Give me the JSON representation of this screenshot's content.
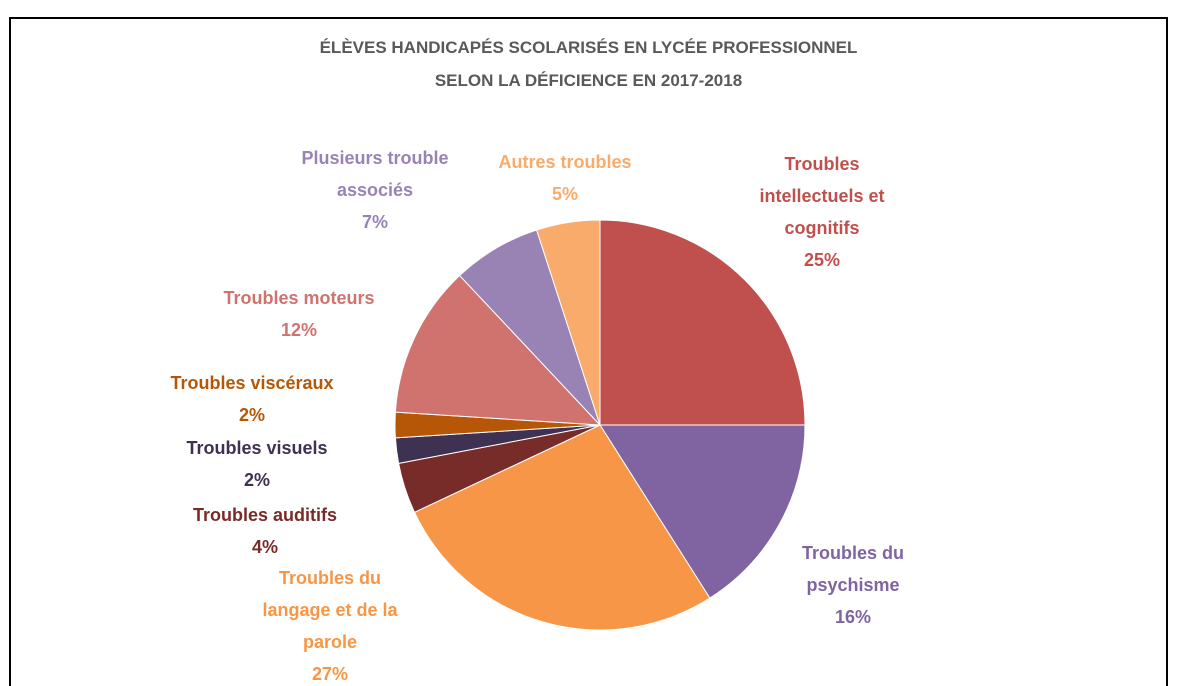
{
  "chart_data": {
    "type": "pie",
    "title": [
      "ÉLÈVES HANDICAPÉS SCOLARISÉS EN LYCÉE PROFESSIONNEL",
      "SELON LA DÉFICIENCE EN 2017-2018"
    ],
    "categories": [
      "Troubles intellectuels et cognitifs",
      "Troubles du psychisme",
      "Troubles du langage et de la parole",
      "Troubles auditifs",
      "Troubles visuels",
      "Troubles viscéraux",
      "Troubles moteurs",
      "Plusieurs trouble associés",
      "Autres troubles"
    ],
    "values": [
      25,
      16,
      27,
      4,
      2,
      2,
      12,
      7,
      5
    ],
    "value_labels": [
      "25%",
      "16%",
      "27%",
      "4%",
      "2%",
      "2%",
      "12%",
      "7%",
      "5%"
    ],
    "colors": [
      "#c0504d",
      "#8064a2",
      "#f79646",
      "#772c2a",
      "#3f3151",
      "#b65708",
      "#d0736f",
      "#9983b5",
      "#f9ab6b"
    ]
  }
}
